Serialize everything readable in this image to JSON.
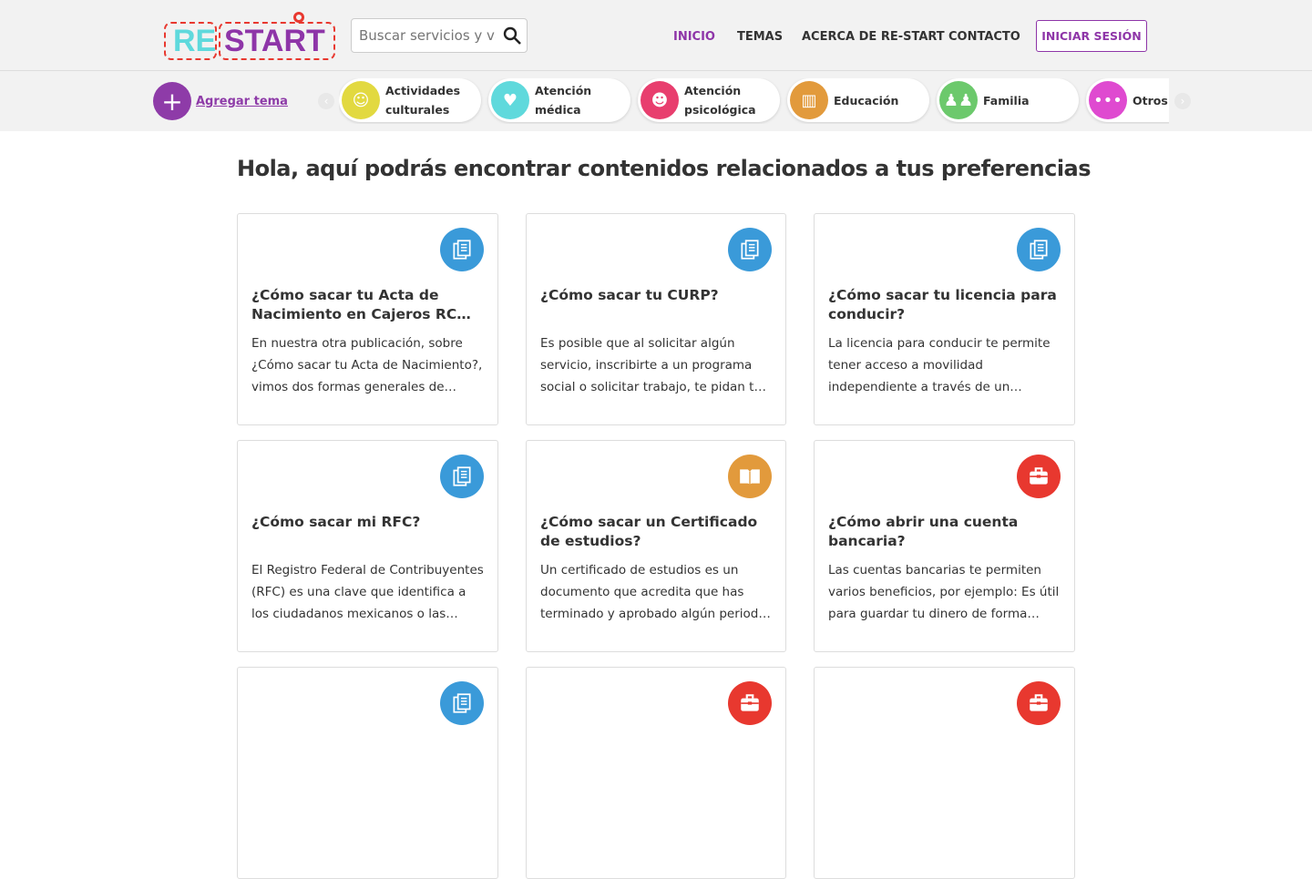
{
  "header": {
    "logo": "RE START",
    "search_placeholder": "Buscar servicios y vacantes",
    "nav": [
      {
        "label": "INICIO",
        "active": true
      },
      {
        "label": "TEMAS"
      },
      {
        "label": "ACERCA DE RE-START"
      },
      {
        "label": "CONTACTO"
      }
    ],
    "login": "INICIAR SESIÓN"
  },
  "topics_bar": {
    "add_label": "Agregar tema",
    "topics": [
      {
        "label": "Actividades culturales",
        "color": "#e2d940",
        "icon": "theater-masks-icon"
      },
      {
        "label": "Atención médica",
        "color": "#5fd9dc",
        "icon": "heartbeat-icon"
      },
      {
        "label": "Atención psicológica",
        "color": "#e83e6e",
        "icon": "head-brain-icon"
      },
      {
        "label": "Educación",
        "color": "#e29a3c",
        "icon": "book-icon"
      },
      {
        "label": "Familia",
        "color": "#6cc96c",
        "icon": "family-icon"
      },
      {
        "label": "Otros",
        "color": "#df4ad0",
        "icon": "dots-icon"
      }
    ]
  },
  "main": {
    "title": "Hola, aquí podrás encontrar contenidos relacionados a tus preferencias",
    "cards": [
      {
        "title": "¿Cómo sacar tu Acta de Nacimiento en Cajeros RC NE…",
        "text": "En nuestra otra publicación, sobre ¿Cómo sacar tu Acta de Nacimiento?, vimos dos formas generales de…",
        "icon": "documents-icon",
        "color": "#3a9ad9"
      },
      {
        "title": "¿Cómo sacar tu CURP?",
        "text": "Es posible que al solicitar algún servicio, inscribirte a un programa social o solicitar trabajo, te pidan  t…",
        "icon": "documents-icon",
        "color": "#3a9ad9"
      },
      {
        "title": "¿Cómo sacar tu licencia para conducir?",
        "text": "La licencia para conducir te permite tener acceso a movilidad independiente a través de un…",
        "icon": "documents-icon",
        "color": "#3a9ad9"
      },
      {
        "title": "¿Cómo sacar mi RFC?",
        "text": "El Registro Federal de Contribuyentes (RFC) es una clave que identifica a los ciudadanos mexicanos o las empre…",
        "icon": "documents-icon",
        "color": "#3a9ad9"
      },
      {
        "title": "¿Cómo sacar un Certificado de estudios?",
        "text": "Un certificado de estudios es un documento que acredita que has terminado y aprobado algún period…",
        "icon": "book-icon",
        "color": "#e29a3c"
      },
      {
        "title": "¿Cómo abrir una cuenta bancaria?",
        "text": "Las cuentas bancarias te permiten varios beneficios, por ejemplo: Es útil para guardar tu dinero de forma…",
        "icon": "briefcase-icon",
        "color": "#e8382f"
      },
      {
        "title": "",
        "text": "",
        "icon": "documents-icon",
        "color": "#3a9ad9"
      },
      {
        "title": "",
        "text": "",
        "icon": "briefcase-icon",
        "color": "#e8382f"
      },
      {
        "title": "",
        "text": "",
        "icon": "briefcase-icon",
        "color": "#e8382f"
      }
    ]
  }
}
